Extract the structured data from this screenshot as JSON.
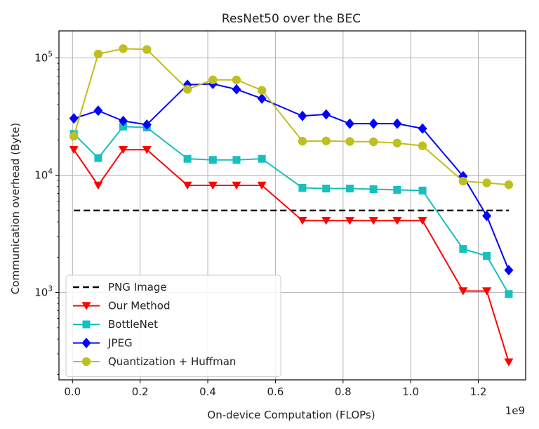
{
  "chart_data": {
    "type": "line",
    "title": "ResNet50 over the BEC",
    "xlabel": "On-device Computation (FLOPs)",
    "ylabel": "Communication overhead (Byte)",
    "x_offset_label": "1e9",
    "yscale": "log",
    "xlim": [
      -0.04,
      1.34
    ],
    "ylim": [
      180,
      170000
    ],
    "x_ticks": [
      0.0,
      0.2,
      0.4,
      0.6,
      0.8,
      1.0,
      1.2
    ],
    "x_tick_labels": [
      "0.0",
      "0.2",
      "0.4",
      "0.6",
      "0.8",
      "1.0",
      "1.2"
    ],
    "y_ticks": [
      1000,
      10000,
      100000
    ],
    "y_tick_labels": [
      {
        "base": "10",
        "exp": "3"
      },
      {
        "base": "10",
        "exp": "4"
      },
      {
        "base": "10",
        "exp": "5"
      }
    ],
    "grid": true,
    "legend_position": "lower-left",
    "x": [
      0.004,
      0.076,
      0.15,
      0.22,
      0.34,
      0.415,
      0.485,
      0.56,
      0.68,
      0.75,
      0.82,
      0.89,
      0.96,
      1.035,
      1.155,
      1.225,
      1.29
    ],
    "series": [
      {
        "name": "PNG Image",
        "color": "#000000",
        "line": "dashed",
        "marker": "none",
        "values": [
          5000,
          5000,
          5000,
          5000,
          5000,
          5000,
          5000,
          5000,
          5000,
          5000,
          5000,
          5000,
          5000,
          5000,
          5000,
          5000,
          5000
        ]
      },
      {
        "name": "Our Method",
        "color": "#ff0000",
        "line": "solid",
        "marker": "triangle-down",
        "values": [
          16500,
          8200,
          16500,
          16500,
          8200,
          8200,
          8200,
          8200,
          4100,
          4100,
          4100,
          4100,
          4100,
          4100,
          1030,
          1030,
          255
        ]
      },
      {
        "name": "BottleNet",
        "color": "#17bfbf",
        "line": "solid",
        "marker": "square",
        "values": [
          22500,
          14000,
          26000,
          25500,
          13800,
          13500,
          13500,
          13800,
          7800,
          7700,
          7700,
          7600,
          7500,
          7400,
          2350,
          2050,
          970
        ]
      },
      {
        "name": "JPEG",
        "color": "#0000ff",
        "line": "solid",
        "marker": "diamond",
        "values": [
          30500,
          35500,
          29000,
          27000,
          59000,
          60000,
          54000,
          45000,
          32000,
          33000,
          27500,
          27500,
          27500,
          25000,
          9800,
          4500,
          1550
        ]
      },
      {
        "name": "Quantization + Huffman",
        "color": "#bfbf1f",
        "line": "solid",
        "marker": "circle",
        "values": [
          21500,
          108000,
          120000,
          118000,
          54000,
          65000,
          65000,
          53000,
          19500,
          19600,
          19400,
          19300,
          18800,
          17800,
          8900,
          8600,
          8300
        ]
      }
    ]
  }
}
